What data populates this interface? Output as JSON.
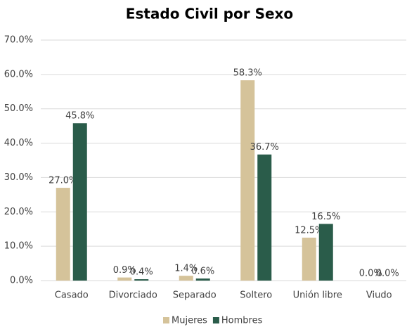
{
  "chart_data": {
    "type": "bar",
    "title": "Estado Civil por Sexo",
    "categories": [
      "Casado",
      "Divorciado",
      "Separado",
      "Soltero",
      "Unión libre",
      "Viudo"
    ],
    "series": [
      {
        "name": "Mujeres",
        "color": "#d5c39a",
        "values": [
          27.0,
          0.9,
          1.4,
          58.3,
          12.5,
          0.0
        ],
        "value_labels": [
          "27.0%",
          "0.9%",
          "1.4%",
          "58.3%",
          "12.5%",
          "0.0%"
        ]
      },
      {
        "name": "Hombres",
        "color": "#2a5c4a",
        "values": [
          45.8,
          0.4,
          0.6,
          36.7,
          16.5,
          0.0
        ],
        "value_labels": [
          "45.8%",
          "0.4%",
          "0.6%",
          "36.7%",
          "16.5%",
          "0.0%"
        ]
      }
    ],
    "ylim": [
      0,
      70
    ],
    "yticks": [
      {
        "value": 0,
        "label": "0.0%"
      },
      {
        "value": 10,
        "label": "10.0%"
      },
      {
        "value": 20,
        "label": "20.0%"
      },
      {
        "value": 30,
        "label": "30.0%"
      },
      {
        "value": 40,
        "label": "40.0%"
      },
      {
        "value": 50,
        "label": "50.0%"
      },
      {
        "value": 60,
        "label": "60.0%"
      },
      {
        "value": 70,
        "label": "70.0%"
      }
    ],
    "grid": true,
    "legend": "bottom"
  }
}
